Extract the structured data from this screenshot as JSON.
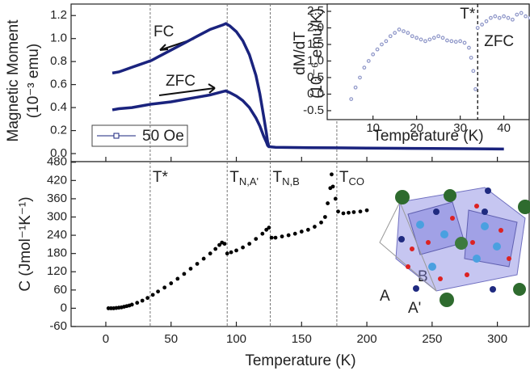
{
  "chart_data": [
    {
      "type": "line",
      "ylabel": "Magnetic Moment",
      "yunit": "(10⁻³ emu)",
      "legend": "50 Oe",
      "xlim": [
        -26.6,
        325
      ],
      "ylim": [
        -0.07,
        1.3
      ],
      "yticks": [
        {
          "value": 0,
          "label": "0.0"
        },
        0.2,
        0.4,
        0.6,
        0.8,
        {
          "value": 1,
          "label": "1.0"
        },
        1.2
      ],
      "series": [
        {
          "name": "FC",
          "color": "#1a237e",
          "x": [
            5,
            10,
            15,
            20,
            25,
            30,
            35,
            40,
            45,
            50,
            55,
            60,
            65,
            70,
            75,
            80,
            85,
            90,
            92,
            95,
            100,
            105,
            110,
            115,
            118,
            121,
            123,
            124,
            125,
            130,
            150,
            175,
            200,
            225,
            250,
            275,
            305
          ],
          "values": [
            0.7,
            0.71,
            0.73,
            0.75,
            0.77,
            0.79,
            0.81,
            0.84,
            0.87,
            0.9,
            0.93,
            0.96,
            0.99,
            1.02,
            1.05,
            1.08,
            1.1,
            1.12,
            1.13,
            1.11,
            1.06,
            0.98,
            0.86,
            0.68,
            0.52,
            0.32,
            0.18,
            0.1,
            0.06,
            0.055,
            0.052,
            0.05,
            0.048,
            0.046,
            0.044,
            0.042,
            0.04
          ]
        },
        {
          "name": "ZFC",
          "color": "#1a237e",
          "x": [
            5,
            10,
            20,
            30,
            35,
            50,
            60,
            70,
            80,
            90,
            92,
            95,
            100,
            105,
            110,
            115,
            118,
            121,
            123,
            124,
            125
          ],
          "values": [
            0.38,
            0.39,
            0.4,
            0.42,
            0.43,
            0.45,
            0.47,
            0.49,
            0.51,
            0.54,
            0.545,
            0.53,
            0.5,
            0.46,
            0.4,
            0.31,
            0.24,
            0.15,
            0.1,
            0.07,
            0.06
          ]
        }
      ]
    },
    {
      "type": "scatter",
      "xlabel": "Temperature (K)",
      "ylabel": "dM/dT",
      "yunit": "(10⁻⁶ emu/K)",
      "annotation": "ZFC",
      "marker": {
        "x": 34,
        "label": "T*"
      },
      "xlim": [
        -0.5,
        46
      ],
      "ylim": [
        -0.77,
        2.72
      ],
      "xticks": [
        10,
        20,
        30,
        40
      ],
      "yticks": [
        {
          "value": -0.5,
          "label": "-0.5"
        },
        {
          "value": 0,
          "label": "0.0"
        },
        0.5,
        {
          "value": 1,
          "label": "1.0"
        },
        1.5,
        {
          "value": 2,
          "label": "2.0"
        },
        2.5
      ],
      "color": "#8e96c8",
      "x": [
        5,
        6,
        7,
        8,
        9,
        10,
        11,
        12,
        13,
        14,
        15,
        16,
        17,
        18,
        19,
        20,
        21,
        22,
        23,
        24,
        25,
        26,
        27,
        28,
        29,
        30,
        31,
        32,
        32.5,
        33,
        33.5,
        34,
        35,
        36,
        37,
        38,
        39,
        40,
        41,
        42,
        43,
        44,
        45,
        46
      ],
      "values": [
        -0.15,
        0.2,
        0.5,
        0.8,
        1.0,
        1.2,
        1.35,
        1.5,
        1.6,
        1.75,
        1.85,
        1.95,
        1.9,
        1.85,
        1.75,
        1.7,
        1.65,
        1.6,
        1.65,
        1.7,
        1.75,
        1.7,
        1.62,
        1.6,
        1.58,
        1.6,
        1.55,
        1.4,
        1.1,
        0.7,
        0.15,
        2.0,
        2.1,
        2.2,
        2.3,
        2.35,
        2.3,
        2.35,
        2.3,
        2.25,
        2.4,
        2.45,
        2.35,
        2.3
      ]
    },
    {
      "type": "scatter",
      "xlabel": "Temperature (K)",
      "ylabel": "C (Jmol⁻¹K⁻¹)",
      "color": "#000000",
      "xlim": [
        -26.6,
        325
      ],
      "ylim": [
        -60,
        482
      ],
      "xticks": [
        0,
        50,
        100,
        150,
        200,
        250,
        300
      ],
      "yticks": [
        -60,
        0,
        60,
        120,
        180,
        240,
        300,
        360,
        420,
        480
      ],
      "markers": [
        {
          "x": 34,
          "label": "T*"
        },
        {
          "x": 93,
          "label": "T",
          "sub": "N,A'"
        },
        {
          "x": 126,
          "label": "T",
          "sub": "N,B"
        },
        {
          "x": 177,
          "label": "T",
          "sub": "CO"
        }
      ],
      "structure_labels": [
        "A",
        "B",
        "A'"
      ],
      "x": [
        2,
        4,
        6,
        8,
        10,
        12,
        14,
        16,
        18,
        20,
        24,
        28,
        32,
        36,
        40,
        45,
        50,
        55,
        60,
        65,
        70,
        75,
        80,
        84,
        87,
        89,
        91,
        93,
        96,
        100,
        105,
        110,
        115,
        120,
        123,
        125,
        127,
        130,
        135,
        140,
        145,
        150,
        155,
        160,
        165,
        168,
        170,
        172,
        173,
        174,
        176,
        178,
        182,
        186,
        190,
        195,
        200
      ],
      "values": [
        0,
        0,
        0,
        1,
        2,
        3,
        5,
        7,
        9,
        12,
        18,
        25,
        34,
        44,
        55,
        68,
        82,
        97,
        113,
        130,
        146,
        163,
        180,
        195,
        208,
        216,
        212,
        180,
        184,
        190,
        200,
        212,
        228,
        245,
        258,
        265,
        232,
        232,
        236,
        240,
        245,
        252,
        258,
        268,
        282,
        300,
        345,
        395,
        440,
        400,
        360,
        318,
        312,
        314,
        316,
        318,
        322
      ]
    }
  ]
}
